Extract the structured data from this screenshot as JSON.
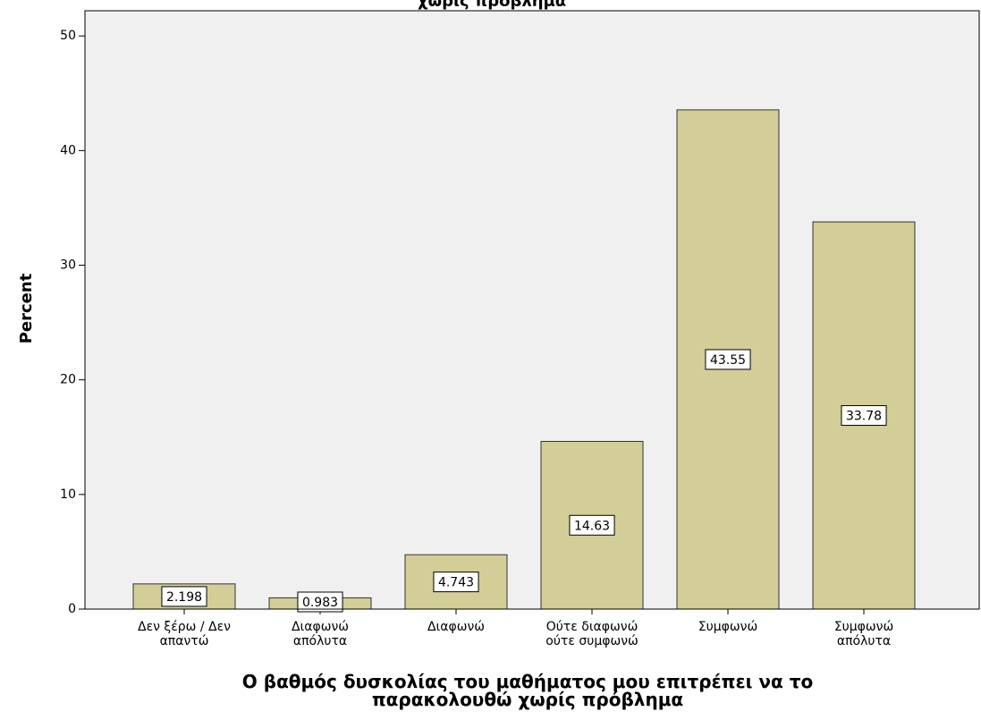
{
  "chart_data": {
    "type": "bar",
    "title": "χωρίς πρόβλημα",
    "categories": [
      [
        "Δεν ξέρω / Δεν",
        "απαντώ"
      ],
      [
        "Διαφωνώ",
        "απόλυτα"
      ],
      [
        "Διαφωνώ"
      ],
      [
        "Ούτε διαφωνώ",
        "ούτε συμφωνώ"
      ],
      [
        "Συμφωνώ"
      ],
      [
        "Συμφωνώ",
        "απόλυτα"
      ]
    ],
    "values": [
      2.198,
      0.983,
      4.743,
      14.63,
      43.55,
      33.78
    ],
    "color": "#d3ce97",
    "ylabel": "Percent",
    "xlabel": [
      "Ο βαθμός δυσκολίας του μαθήματος μου επιτρέπει να το",
      "παρακολουθώ χωρίς πρόβλημα"
    ],
    "ylim": [
      0,
      52.2
    ],
    "yticks": [
      0,
      10,
      20,
      30,
      40,
      50
    ]
  }
}
